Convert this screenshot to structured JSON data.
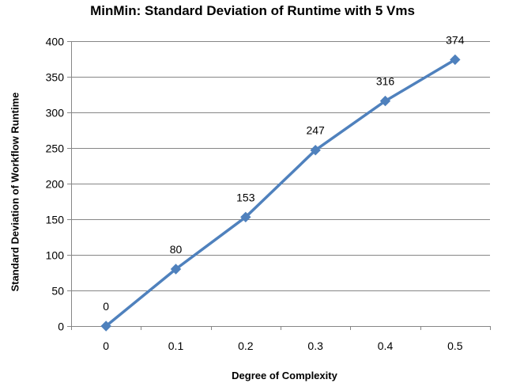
{
  "chart_data": {
    "type": "line",
    "title": "MinMin: Standard Deviation of Runtime with 5 Vms",
    "xlabel": "Degree of Complexity",
    "ylabel": "Standard Deviation of Workflow Runtime",
    "categories": [
      "0",
      "0.1",
      "0.2",
      "0.3",
      "0.4",
      "0.5"
    ],
    "series": [
      {
        "values": [
          0,
          80,
          153,
          247,
          316,
          374
        ],
        "data_labels": [
          "0",
          "80",
          "153",
          "247",
          "316",
          "374"
        ],
        "color": "#4F81BD",
        "marker": "diamond"
      }
    ],
    "ylim": [
      0,
      400
    ],
    "yticks": [
      0,
      50,
      100,
      150,
      200,
      250,
      300,
      350,
      400
    ],
    "ytick_labels": [
      "0",
      "50",
      "100",
      "150",
      "200",
      "250",
      "300",
      "350",
      "400"
    ],
    "grid": true,
    "gridline_color": "#868686",
    "legend": "none"
  }
}
